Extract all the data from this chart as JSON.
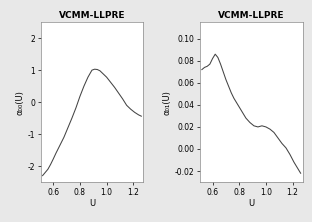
{
  "title": "VCMM-LLPRE",
  "xlabel": "U",
  "panel1": {
    "ylabel": "α₀₀(U)",
    "ylim": [
      -2.5,
      2.5
    ],
    "yticks": [
      -2,
      -1,
      0,
      1,
      2
    ],
    "xlim": [
      0.505,
      1.275
    ],
    "xticks": [
      0.6,
      0.8,
      1.0,
      1.2
    ],
    "curve_x": [
      0.52,
      0.54,
      0.56,
      0.58,
      0.6,
      0.62,
      0.65,
      0.68,
      0.71,
      0.74,
      0.77,
      0.8,
      0.83,
      0.86,
      0.89,
      0.91,
      0.93,
      0.95,
      0.97,
      1.0,
      1.03,
      1.06,
      1.09,
      1.12,
      1.15,
      1.18,
      1.21,
      1.24,
      1.26
    ],
    "curve_y": [
      -2.3,
      -2.2,
      -2.1,
      -1.95,
      -1.78,
      -1.6,
      -1.35,
      -1.1,
      -0.8,
      -0.5,
      -0.18,
      0.18,
      0.5,
      0.78,
      1.0,
      1.03,
      1.02,
      0.98,
      0.9,
      0.78,
      0.62,
      0.46,
      0.28,
      0.1,
      -0.1,
      -0.22,
      -0.32,
      -0.4,
      -0.44
    ]
  },
  "panel2": {
    "ylabel": "α₀₁(U)",
    "ylim": [
      -0.03,
      0.115
    ],
    "yticks": [
      -0.02,
      0.0,
      0.02,
      0.04,
      0.06,
      0.08,
      0.1
    ],
    "xlim": [
      0.505,
      1.275
    ],
    "xticks": [
      0.6,
      0.8,
      1.0,
      1.2
    ],
    "curve_x": [
      0.52,
      0.54,
      0.56,
      0.58,
      0.6,
      0.62,
      0.64,
      0.66,
      0.68,
      0.7,
      0.72,
      0.74,
      0.76,
      0.79,
      0.82,
      0.85,
      0.88,
      0.91,
      0.94,
      0.97,
      1.0,
      1.03,
      1.06,
      1.09,
      1.12,
      1.15,
      1.18,
      1.21,
      1.24,
      1.26
    ],
    "curve_y": [
      0.072,
      0.074,
      0.075,
      0.077,
      0.082,
      0.086,
      0.083,
      0.077,
      0.07,
      0.063,
      0.057,
      0.051,
      0.046,
      0.04,
      0.034,
      0.028,
      0.024,
      0.021,
      0.02,
      0.021,
      0.02,
      0.018,
      0.015,
      0.01,
      0.005,
      0.001,
      -0.005,
      -0.012,
      -0.018,
      -0.022
    ]
  },
  "line_color": "#444444",
  "bg_color": "#e8e8e8",
  "plot_bg": "#ffffff",
  "title_fontsize": 6.5,
  "label_fontsize": 6.0,
  "tick_fontsize": 5.5
}
